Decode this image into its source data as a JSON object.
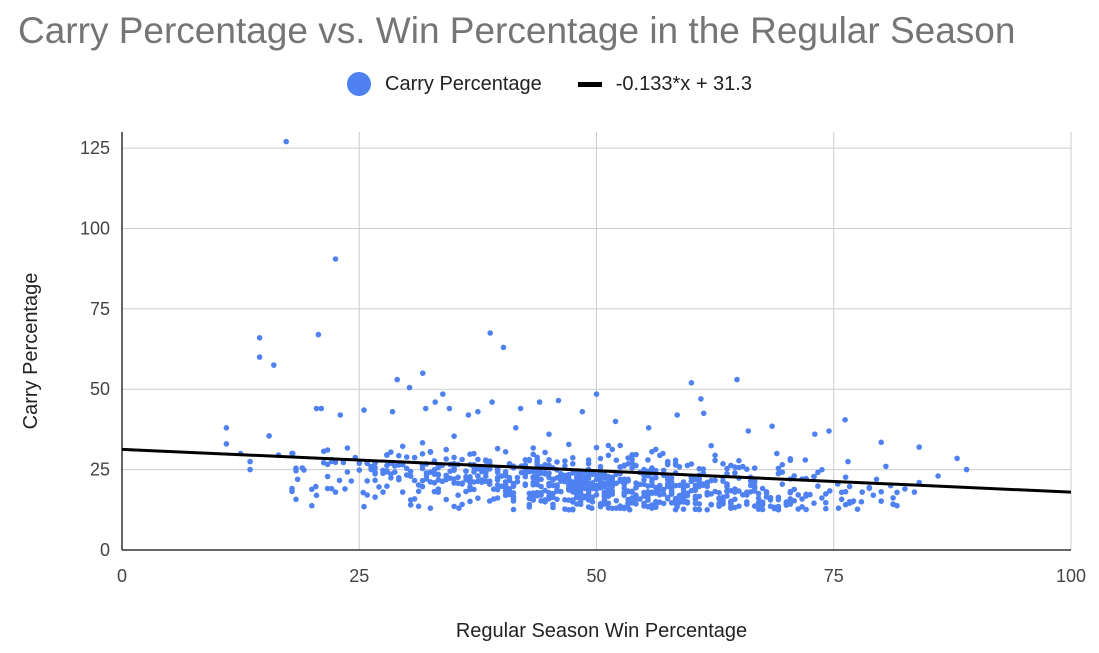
{
  "chart_data": {
    "type": "scatter",
    "title": "Carry Percentage vs. Win Percentage in the Regular Season",
    "xlabel": "Regular Season Win Percentage",
    "ylabel": "Carry Percentage",
    "xlim": [
      0,
      100
    ],
    "ylim": [
      0,
      130
    ],
    "x_ticks": [
      0,
      25,
      50,
      75,
      100
    ],
    "y_ticks": [
      0,
      25,
      50,
      75,
      100,
      125
    ],
    "x_tick_labels": [
      "0",
      "25",
      "50",
      "75",
      "100"
    ],
    "y_tick_labels": [
      "0",
      "25",
      "50",
      "75",
      "100",
      "125"
    ],
    "grid": true,
    "legend_position": "top-center",
    "series": [
      {
        "name": "Carry Percentage",
        "color": "#4f81f1",
        "points": [
          [
            17.3,
            127
          ],
          [
            22.5,
            90.5
          ],
          [
            14.5,
            66
          ],
          [
            20.7,
            67
          ],
          [
            14.5,
            60
          ],
          [
            16.0,
            57.5
          ],
          [
            38.8,
            67.5
          ],
          [
            40.2,
            63
          ],
          [
            60,
            52
          ],
          [
            64.8,
            53
          ],
          [
            50,
            48.5
          ],
          [
            33.8,
            48.5
          ],
          [
            29.0,
            53
          ],
          [
            31.7,
            55
          ],
          [
            30.3,
            50.5
          ],
          [
            21.0,
            44
          ],
          [
            20.5,
            44
          ],
          [
            23.0,
            42
          ],
          [
            25.5,
            43.5
          ],
          [
            28.5,
            43
          ],
          [
            32.0,
            44
          ],
          [
            33.0,
            46
          ],
          [
            34.5,
            44
          ],
          [
            36.5,
            42
          ],
          [
            37.5,
            43
          ],
          [
            39.0,
            46
          ],
          [
            42.0,
            44
          ],
          [
            44.0,
            46
          ],
          [
            46.0,
            46.5
          ],
          [
            48.5,
            43
          ],
          [
            52.0,
            40
          ],
          [
            55.5,
            38
          ],
          [
            58.5,
            42
          ],
          [
            61.0,
            47
          ],
          [
            61.3,
            42.5
          ],
          [
            66.0,
            37
          ],
          [
            68.5,
            38.5
          ],
          [
            73.0,
            36
          ],
          [
            74.5,
            37
          ],
          [
            76.2,
            40.5
          ],
          [
            80.0,
            33.5
          ],
          [
            84.0,
            32
          ],
          [
            88.0,
            28.5
          ],
          [
            89.0,
            25
          ],
          [
            11.0,
            38
          ],
          [
            11.0,
            33
          ],
          [
            12.5,
            30
          ],
          [
            13.5,
            27.5
          ],
          [
            13.5,
            25
          ],
          [
            15.5,
            35.5
          ],
          [
            16.5,
            29.5
          ],
          [
            18.0,
            30
          ],
          [
            18.5,
            22
          ],
          [
            19.0,
            25.5
          ],
          [
            20.5,
            17
          ],
          [
            22.5,
            18
          ],
          [
            23.5,
            19
          ],
          [
            25.5,
            13.5
          ],
          [
            27.5,
            18
          ],
          [
            32.5,
            13
          ],
          [
            35.5,
            13
          ],
          [
            47.5,
            12.5
          ],
          [
            49.5,
            13
          ],
          [
            53.5,
            12.5
          ],
          [
            58.5,
            13.5
          ],
          [
            63.0,
            14
          ],
          [
            70.0,
            14.5
          ],
          [
            75.5,
            13
          ],
          [
            77.0,
            15
          ],
          [
            78.0,
            18
          ],
          [
            81.0,
            20
          ],
          [
            82.5,
            19
          ],
          [
            83.5,
            18
          ],
          [
            84.0,
            21
          ],
          [
            86.0,
            23
          ],
          [
            79.5,
            22
          ],
          [
            80.5,
            26
          ],
          [
            76.5,
            27.5
          ],
          [
            72.0,
            28
          ],
          [
            69.0,
            30
          ],
          [
            57.0,
            30
          ],
          [
            45.0,
            36
          ],
          [
            41.5,
            38
          ]
        ]
      }
    ],
    "trendline": {
      "name": "-0.133*x + 31.3",
      "color": "#000000",
      "slope": -0.133,
      "intercept": 31.3,
      "x_range": [
        0,
        100
      ]
    },
    "dense_cluster": {
      "description": "bulk of points",
      "seed": 20240607,
      "count": 820,
      "x_min": 17.5,
      "x_max": 82,
      "x_center": 50,
      "y_center_at_x0": 31.3,
      "y_slope": -0.133,
      "y_spread_low": 12.5,
      "y_spread_high": 37
    }
  },
  "colors": {
    "title": "#757575",
    "grid": "#cccccc",
    "axis": "#333333",
    "point": "#4f81f1",
    "trend": "#000000"
  }
}
